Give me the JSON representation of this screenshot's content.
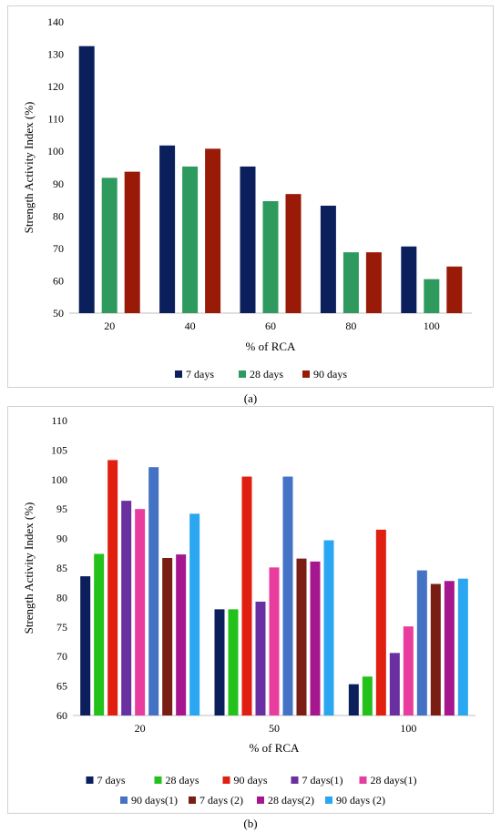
{
  "captions": {
    "a": "(a)",
    "b": "(b)"
  },
  "chart_data": [
    {
      "type": "bar",
      "panel": "a",
      "ylabel": "Strength Activity Index (%)",
      "xlabel": "% of RCA",
      "categories": [
        "20",
        "40",
        "60",
        "80",
        "100"
      ],
      "ylim": [
        50,
        140
      ],
      "ytick_step": 10,
      "series": [
        {
          "name": "7 days",
          "color": "#0b1f5c",
          "values": [
            132.5,
            101.8,
            95.3,
            83.2,
            70.6
          ]
        },
        {
          "name": "28 days",
          "color": "#2e9a5e",
          "values": [
            91.8,
            95.3,
            84.6,
            68.8,
            60.5
          ]
        },
        {
          "name": "90 days",
          "color": "#9a1a08",
          "values": [
            93.7,
            100.8,
            86.8,
            68.8,
            64.4
          ]
        }
      ],
      "legend": "bottom",
      "grid": false
    },
    {
      "type": "bar",
      "panel": "b",
      "ylabel": "Strength Activity Index (%)",
      "xlabel": "% of RCA",
      "categories": [
        "20",
        "50",
        "100"
      ],
      "ylim": [
        60,
        110
      ],
      "ytick_step": 5,
      "series": [
        {
          "name": "7 days",
          "color": "#0b1f5c",
          "values": [
            83.6,
            78.0,
            65.3
          ]
        },
        {
          "name": "28 days",
          "color": "#22c21a",
          "values": [
            87.4,
            78.0,
            66.6
          ]
        },
        {
          "name": "90 days",
          "color": "#e01f10",
          "values": [
            103.3,
            100.5,
            91.5
          ]
        },
        {
          "name": "7 days(1)",
          "color": "#6a2fa0",
          "values": [
            96.4,
            79.3,
            70.6
          ]
        },
        {
          "name": "28 days(1)",
          "color": "#e83d9e",
          "values": [
            95.0,
            85.1,
            75.1
          ]
        },
        {
          "name": "90 days(1)",
          "color": "#4472c4",
          "values": [
            102.1,
            100.5,
            84.6
          ]
        },
        {
          "name": "7 days (2)",
          "color": "#7a1e14",
          "values": [
            86.7,
            86.6,
            82.3
          ]
        },
        {
          "name": "28 days(2)",
          "color": "#a6178f",
          "values": [
            87.3,
            86.1,
            82.8
          ]
        },
        {
          "name": "90 days (2)",
          "color": "#2aa7f0",
          "values": [
            94.2,
            89.7,
            83.2
          ]
        }
      ],
      "legend": "bottom",
      "grid": false
    }
  ]
}
